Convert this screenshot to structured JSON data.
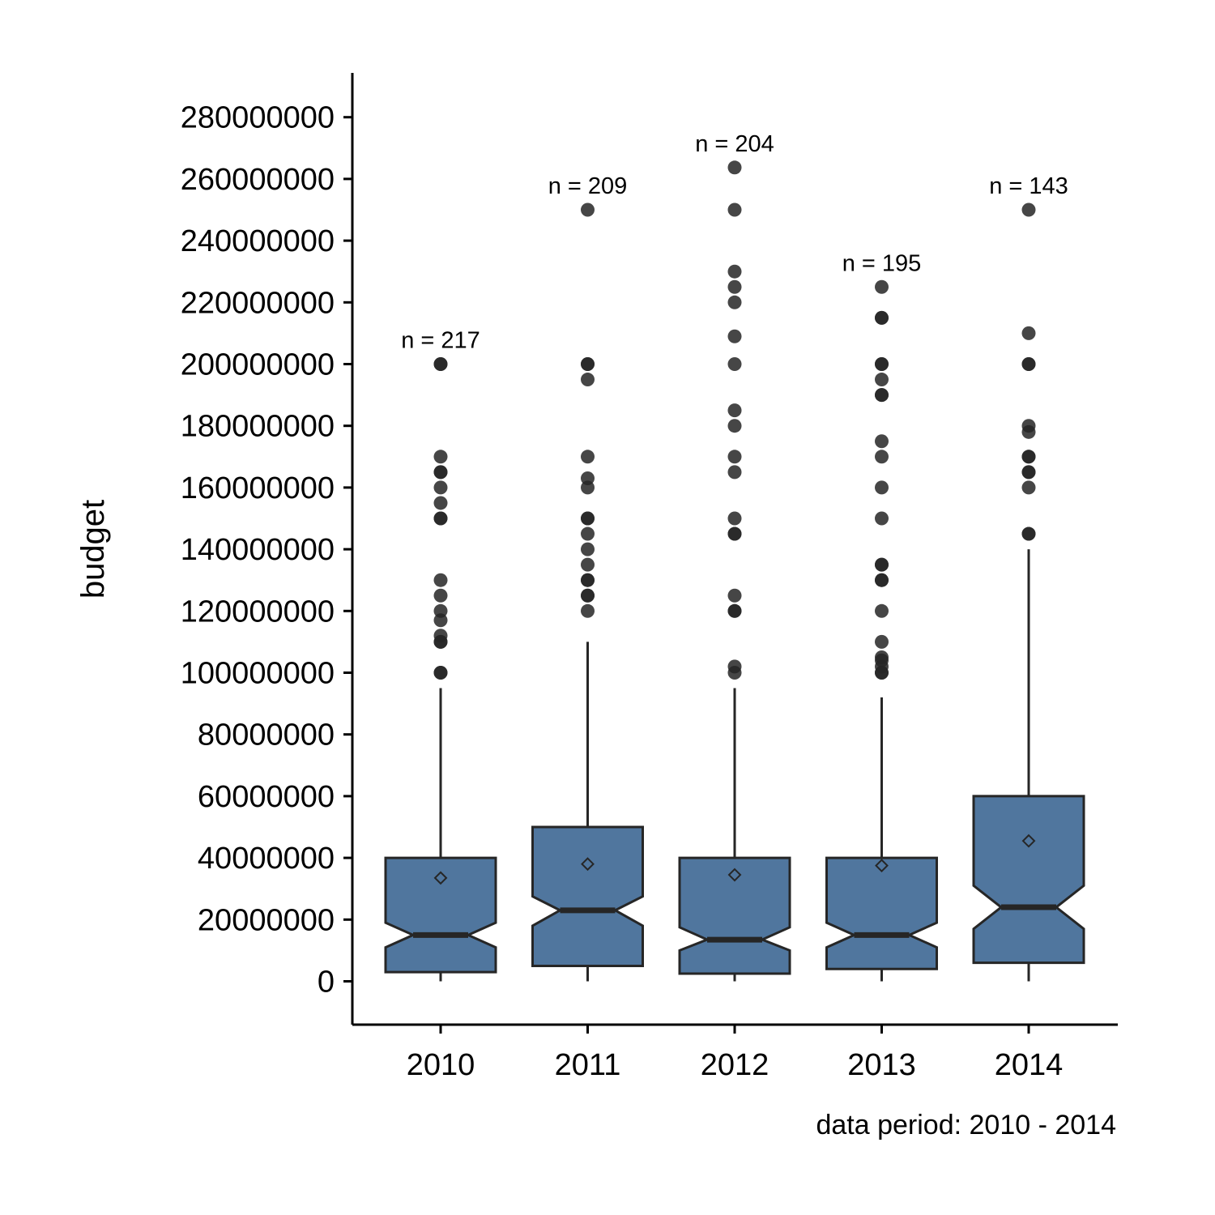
{
  "chart_data": {
    "type": "boxplot",
    "title": "",
    "xlabel": "",
    "ylabel": "budget",
    "caption": "data period: 2010 - 2014",
    "ylim": [
      -14000000,
      294000000
    ],
    "yticks": [
      0,
      20000000,
      40000000,
      60000000,
      80000000,
      100000000,
      120000000,
      140000000,
      160000000,
      180000000,
      200000000,
      220000000,
      240000000,
      260000000,
      280000000
    ],
    "ytick_labels": [
      "0",
      "20000000",
      "40000000",
      "60000000",
      "80000000",
      "100000000",
      "120000000",
      "140000000",
      "160000000",
      "180000000",
      "200000000",
      "220000000",
      "240000000",
      "260000000",
      "280000000"
    ],
    "categories": [
      "2010",
      "2011",
      "2012",
      "2013",
      "2014"
    ],
    "grid": false,
    "notched": true,
    "colors": {
      "box_fill": "#50769e",
      "outline": "#262626",
      "outlier": "#262626"
    },
    "boxes": [
      {
        "category": "2010",
        "n_label": "n = 217",
        "lower_whisker": 0,
        "q1": 3000000,
        "notch_low": 11000000,
        "median": 15000000,
        "notch_high": 19000000,
        "q3": 40000000,
        "upper_whisker": 95000000,
        "mean": 33500000,
        "outliers": [
          100000000,
          100000000,
          110000000,
          110000000,
          112000000,
          117000000,
          120000000,
          125000000,
          130000000,
          150000000,
          150000000,
          155000000,
          160000000,
          165000000,
          165000000,
          170000000,
          200000000,
          200000000
        ]
      },
      {
        "category": "2011",
        "n_label": "n = 209",
        "lower_whisker": 0,
        "q1": 5000000,
        "notch_low": 18000000,
        "median": 23000000,
        "notch_high": 27500000,
        "q3": 50000000,
        "upper_whisker": 110000000,
        "mean": 38000000,
        "outliers": [
          120000000,
          125000000,
          125000000,
          130000000,
          130000000,
          135000000,
          140000000,
          145000000,
          150000000,
          150000000,
          160000000,
          163000000,
          170000000,
          195000000,
          200000000,
          200000000,
          250000000
        ]
      },
      {
        "category": "2012",
        "n_label": "n = 204",
        "lower_whisker": 0,
        "q1": 2500000,
        "notch_low": 10000000,
        "median": 13500000,
        "notch_high": 17500000,
        "q3": 40000000,
        "upper_whisker": 95000000,
        "mean": 34500000,
        "outliers": [
          100000000,
          102000000,
          120000000,
          120000000,
          125000000,
          145000000,
          145000000,
          150000000,
          165000000,
          170000000,
          180000000,
          185000000,
          200000000,
          209000000,
          220000000,
          225000000,
          230000000,
          250000000,
          263700000
        ]
      },
      {
        "category": "2013",
        "n_label": "n = 195",
        "lower_whisker": 0,
        "q1": 4000000,
        "notch_low": 11000000,
        "median": 15000000,
        "notch_high": 19000000,
        "q3": 40000000,
        "upper_whisker": 92000000,
        "mean": 37500000,
        "outliers": [
          100000000,
          100000000,
          102000000,
          104000000,
          105000000,
          110000000,
          120000000,
          130000000,
          130000000,
          135000000,
          135000000,
          150000000,
          160000000,
          170000000,
          175000000,
          190000000,
          190000000,
          195000000,
          200000000,
          200000000,
          215000000,
          215000000,
          225000000
        ]
      },
      {
        "category": "2014",
        "n_label": "n = 143",
        "lower_whisker": 0,
        "q1": 6000000,
        "notch_low": 17000000,
        "median": 24000000,
        "notch_high": 31000000,
        "q3": 60000000,
        "upper_whisker": 140000000,
        "mean": 45500000,
        "outliers": [
          145000000,
          145000000,
          160000000,
          165000000,
          165000000,
          170000000,
          170000000,
          178000000,
          180000000,
          200000000,
          200000000,
          210000000,
          250000000
        ]
      }
    ]
  }
}
